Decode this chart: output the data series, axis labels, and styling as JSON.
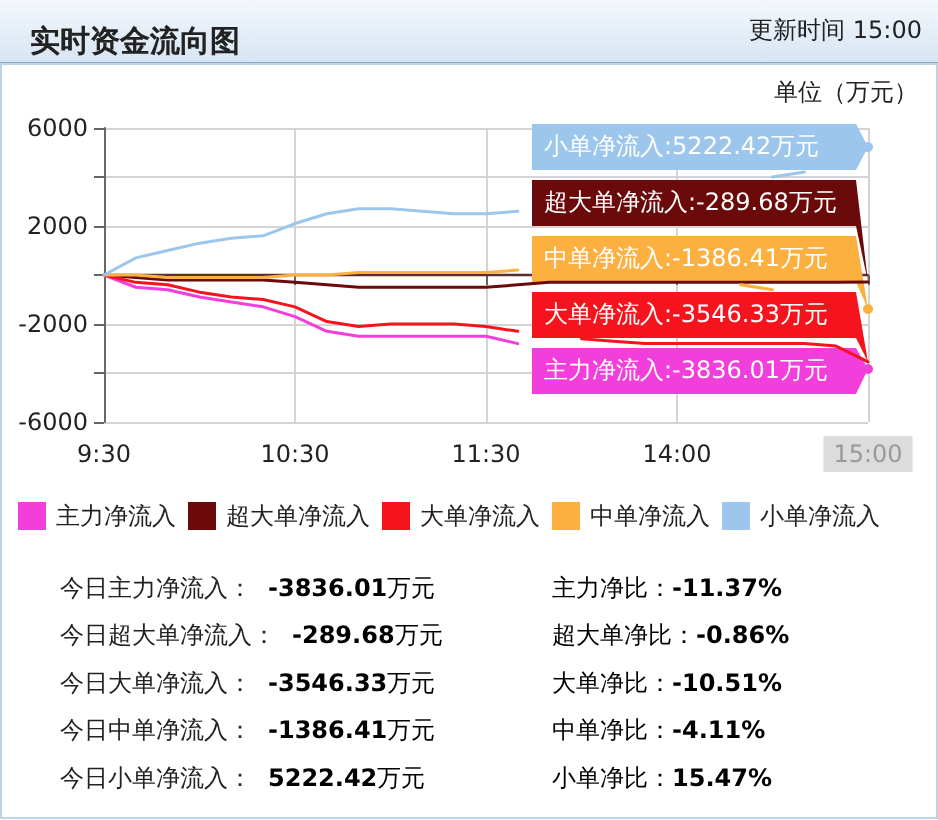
{
  "chart_data": {
    "type": "line",
    "title": "实时资金流向图",
    "subtitle": "更新时间 15:00",
    "ylabel": "单位（万元）",
    "categories": [
      "9:30",
      null,
      null,
      null,
      null,
      null,
      "10:30",
      null,
      null,
      null,
      null,
      null,
      "11:30",
      null,
      null,
      null,
      null,
      null,
      "14:00",
      null,
      null,
      null,
      null,
      null,
      "15:00"
    ],
    "series": [
      {
        "name": "主力净流入",
        "color": "#f23fdc",
        "values": [
          0,
          -500,
          -600,
          -900,
          -1100,
          -1300,
          -1700,
          -2300,
          -2500,
          -2500,
          -2500,
          -2500,
          -2500,
          -2800,
          null,
          null,
          null,
          null,
          null,
          null,
          null,
          null,
          null,
          null,
          -3836.01
        ]
      },
      {
        "name": "超大单净流入",
        "color": "#6b0a0a",
        "values": [
          0,
          -100,
          -200,
          -200,
          -200,
          -200,
          -300,
          -400,
          -500,
          -500,
          -500,
          -500,
          -500,
          -400,
          -300,
          -300,
          -300,
          -300,
          -300,
          -300,
          -300,
          -300,
          -300,
          -300,
          -289.68
        ]
      },
      {
        "name": "大单净流入",
        "color": "#f5141e",
        "values": [
          0,
          -300,
          -400,
          -700,
          -900,
          -1000,
          -1300,
          -1900,
          -2100,
          -2000,
          -2000,
          -2000,
          -2100,
          -2300,
          null,
          -2600,
          -2700,
          -2800,
          -2800,
          -2800,
          -2800,
          -2800,
          -2800,
          -2900,
          -3546.33
        ]
      },
      {
        "name": "中单净流入",
        "color": "#fcb040",
        "values": [
          0,
          0,
          -100,
          -100,
          -100,
          -100,
          0,
          0,
          100,
          100,
          100,
          100,
          100,
          200,
          null,
          null,
          null,
          null,
          null,
          null,
          -400,
          -600,
          null,
          null,
          -1386.41
        ]
      },
      {
        "name": "小单净流入",
        "color": "#9cc6ec",
        "values": [
          0,
          700,
          1000,
          1300,
          1500,
          1600,
          2100,
          2500,
          2700,
          2700,
          2600,
          2500,
          2500,
          2600,
          null,
          null,
          null,
          null,
          null,
          null,
          null,
          4000,
          4200,
          null,
          5222.42
        ]
      }
    ],
    "ylim": [
      -6000,
      6000
    ],
    "yticks": [
      -6000,
      {
        "value": -4000,
        "label": null
      },
      -2000,
      {
        "value": 0,
        "label": null
      },
      2000,
      {
        "value": 4000,
        "label": null
      },
      6000
    ],
    "ref_lines": [
      {
        "axis": "y",
        "value": 0,
        "label": null,
        "color": "#5a2e2e"
      }
    ],
    "grid": true,
    "legend": "bottom",
    "marker": "none",
    "line_style": "solid",
    "annotations": [
      {
        "text": "小单净流入:5222.42万元",
        "x": "15:00",
        "y": 5222.42
      },
      {
        "text": "超大单净流入:-289.68万元",
        "x": "15:00",
        "y": -289.68
      },
      {
        "text": "中单净流入:-1386.41万元",
        "x": "15:00",
        "y": -1386.41
      },
      {
        "text": "大单净流入:-3546.33万元",
        "x": "15:00",
        "y": -3546.33
      },
      {
        "text": "主力净流入:-3836.01万元",
        "x": "15:00",
        "y": -3836.01
      },
      "今日主力净流入：",
      "-3836.01",
      "万元",
      "主力净比：",
      "-11.37%",
      "今日超大单净流入：",
      "-289.68",
      "万元",
      "超大单净比：",
      "-0.86%",
      "今日大单净流入：",
      "-3546.33",
      "万元",
      "大单净比：",
      "-10.51%",
      "今日中单净流入：",
      "-1386.41",
      "万元",
      "中单净比：",
      "-4.11%",
      "今日小单净流入：",
      "5222.42",
      "万元",
      "小单净比：",
      "15.47%"
    ]
  }
}
